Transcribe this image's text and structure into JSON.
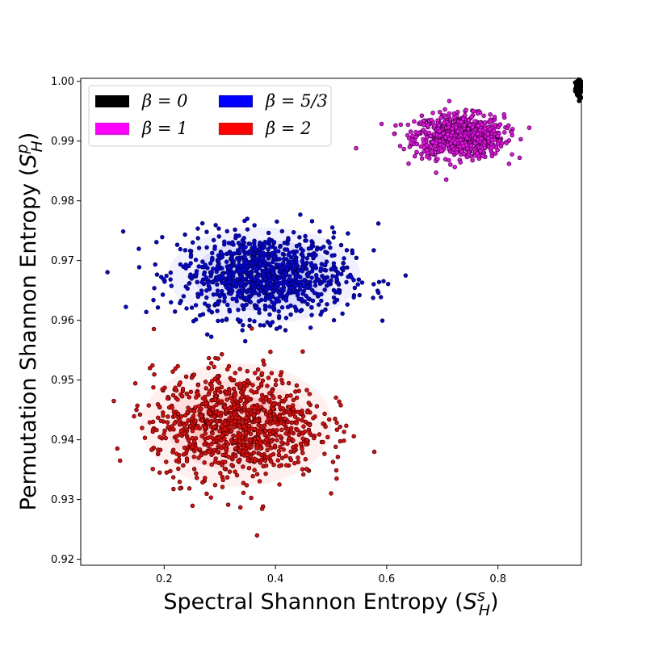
{
  "chart_data": {
    "type": "scatter",
    "title": "",
    "xlabel": "Spectral Shannon Entropy ($S_H^s$)",
    "ylabel": "Permutation Shannon Entropy ($S_H^p$)",
    "xlim": [
      0.05,
      0.95
    ],
    "ylim": [
      0.919,
      1.0005
    ],
    "xticks": [
      "0.2",
      "0.4",
      "0.6",
      "0.8"
    ],
    "xtick_values": [
      0.2,
      0.4,
      0.6,
      0.8
    ],
    "yticks": [
      "0.92",
      "0.93",
      "0.94",
      "0.95",
      "0.96",
      "0.97",
      "0.98",
      "0.99",
      "1.00"
    ],
    "ytick_values": [
      0.92,
      0.93,
      0.94,
      0.95,
      0.96,
      0.97,
      0.98,
      0.99,
      1.0
    ],
    "grid": false,
    "legend_position": "top-left",
    "legend_columns": 2,
    "series": [
      {
        "name": "β = 0",
        "color": "#000000",
        "x_center": 0.947,
        "y_center": 0.9988,
        "x_sd": 0.004,
        "y_sd": 0.0008,
        "count": 60,
        "density_contour": false
      },
      {
        "name": "β = 1",
        "color": "#ff00ff",
        "x_center": 0.73,
        "y_center": 0.9908,
        "x_sd": 0.04,
        "y_sd": 0.0018,
        "count": 800,
        "density_contour": true
      },
      {
        "name": "β = 5/3",
        "color": "#0000ff",
        "x_center": 0.38,
        "y_center": 0.9675,
        "x_sd": 0.075,
        "y_sd": 0.0035,
        "count": 1000,
        "density_contour": true
      },
      {
        "name": "β = 2",
        "color": "#ff0000",
        "x_center": 0.33,
        "y_center": 0.9425,
        "x_sd": 0.075,
        "y_sd": 0.0045,
        "count": 1000,
        "density_contour": true
      }
    ],
    "outliers": [
      {
        "series": "β = 2",
        "x": 0.367,
        "y": 0.924
      },
      {
        "series": "β = 2",
        "x": 0.51,
        "y": 0.9335
      },
      {
        "series": "β = 5/3",
        "x": 0.634,
        "y": 0.9675
      },
      {
        "series": "β = 5/3",
        "x": 0.585,
        "y": 0.9762
      },
      {
        "series": "β = 1",
        "x": 0.545,
        "y": 0.9888
      }
    ]
  }
}
